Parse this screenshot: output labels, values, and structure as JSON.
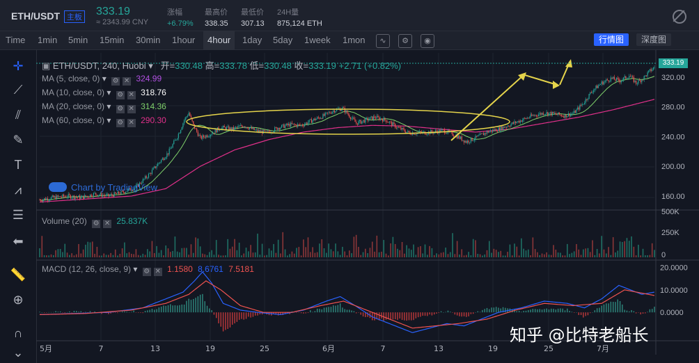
{
  "header": {
    "pair": "ETH/USDT",
    "market_tag": "主板",
    "price": "333.19",
    "price_cny": "≈ 2343.99 CNY",
    "stats": [
      {
        "label": "涨幅",
        "value": "+6.79%",
        "up": true
      },
      {
        "label": "最高价",
        "value": "338.35",
        "up": false
      },
      {
        "label": "最低价",
        "value": "307.13",
        "up": false
      },
      {
        "label": "24H量",
        "value": "875,124 ETH",
        "up": false
      }
    ]
  },
  "toolbar": {
    "intervals": [
      "Time",
      "1min",
      "5min",
      "15min",
      "30min",
      "1hour",
      "4hour",
      "1day",
      "5day",
      "1week",
      "1mon"
    ],
    "active_interval": "4hour",
    "views": [
      "行情图",
      "深度图"
    ],
    "active_view": "行情图"
  },
  "ohlc": {
    "symbol_line": "ETH/USDT, 240, Huobi",
    "open_label": "开=",
    "open": "330.48",
    "high_label": "高=",
    "high": "333.78",
    "low_label": "低=",
    "low": "330.48",
    "close_label": "收=",
    "close": "333.19",
    "change": "+2.71 (+0.82%)"
  },
  "indicators": [
    {
      "label": "MA (5, close, 0)",
      "value": "324.99",
      "color": "#b04fe0"
    },
    {
      "label": "MA (10, close, 0)",
      "value": "318.76",
      "color": "#ffffff"
    },
    {
      "label": "MA (20, close, 0)",
      "value": "314.36",
      "color": "#7fd16b"
    },
    {
      "label": "MA (60, close, 0)",
      "value": "290.30",
      "color": "#e0308a"
    }
  ],
  "volume_legend": {
    "label": "Volume (20)",
    "value": "25.837K"
  },
  "macd_legend": {
    "label": "MACD (12, 26, close, 9)",
    "hist": "1.1580",
    "macd": "8.6761",
    "signal": "7.5181"
  },
  "watermark": "Chart by TradingView",
  "zhihu_watermark": "知乎 @比特老船长",
  "last_price_tag": "333.19",
  "chart_data": {
    "type": "candlestick",
    "x_ticks": [
      "5月",
      "7",
      "13",
      "19",
      "25",
      "6月",
      "7",
      "13",
      "19",
      "25",
      "7月"
    ],
    "y_ticks": [
      "320.00",
      "280.00",
      "240.00",
      "200.00",
      "160.00"
    ],
    "ylim": [
      145,
      345
    ],
    "volume_ticks": [
      "500K",
      "250K",
      "0"
    ],
    "volume_ylim": [
      0,
      520000
    ],
    "macd_ticks": [
      "20.0000",
      "10.0000",
      "0.0000"
    ],
    "macd_ylim": [
      -12,
      22
    ],
    "close_path": [
      [
        0,
        155
      ],
      [
        12,
        158
      ],
      [
        24,
        160
      ],
      [
        36,
        158
      ],
      [
        48,
        163
      ],
      [
        60,
        160
      ],
      [
        72,
        165
      ],
      [
        84,
        172
      ],
      [
        96,
        190
      ],
      [
        104,
        205
      ],
      [
        112,
        218
      ],
      [
        120,
        240
      ],
      [
        126,
        262
      ],
      [
        130,
        272
      ],
      [
        134,
        255
      ],
      [
        140,
        238
      ],
      [
        148,
        243
      ],
      [
        158,
        252
      ],
      [
        168,
        250
      ],
      [
        178,
        255
      ],
      [
        188,
        248
      ],
      [
        198,
        245
      ],
      [
        208,
        252
      ],
      [
        218,
        256
      ],
      [
        228,
        255
      ],
      [
        238,
        262
      ],
      [
        248,
        268
      ],
      [
        256,
        275
      ],
      [
        264,
        278
      ],
      [
        270,
        268
      ],
      [
        276,
        258
      ],
      [
        284,
        262
      ],
      [
        292,
        266
      ],
      [
        302,
        262
      ],
      [
        312,
        252
      ],
      [
        322,
        245
      ],
      [
        332,
        245
      ],
      [
        342,
        246
      ],
      [
        352,
        248
      ],
      [
        362,
        242
      ],
      [
        372,
        233
      ],
      [
        380,
        238
      ],
      [
        390,
        246
      ],
      [
        400,
        250
      ],
      [
        410,
        256
      ],
      [
        420,
        262
      ],
      [
        430,
        268
      ],
      [
        440,
        272
      ],
      [
        450,
        270
      ],
      [
        458,
        268
      ],
      [
        466,
        272
      ],
      [
        474,
        285
      ],
      [
        482,
        302
      ],
      [
        490,
        312
      ],
      [
        498,
        318
      ],
      [
        506,
        315
      ],
      [
        514,
        322
      ],
      [
        520,
        312
      ],
      [
        526,
        318
      ],
      [
        532,
        328
      ],
      [
        536,
        333
      ]
    ],
    "ma60_path": [
      [
        0,
        152
      ],
      [
        40,
        156
      ],
      [
        80,
        160
      ],
      [
        110,
        170
      ],
      [
        140,
        200
      ],
      [
        170,
        222
      ],
      [
        200,
        236
      ],
      [
        230,
        246
      ],
      [
        260,
        252
      ],
      [
        290,
        255
      ],
      [
        320,
        254
      ],
      [
        350,
        250
      ],
      [
        380,
        246
      ],
      [
        410,
        250
      ],
      [
        440,
        258
      ],
      [
        470,
        266
      ],
      [
        500,
        276
      ],
      [
        536,
        290
      ]
    ],
    "macd_path": [
      [
        0,
        -1
      ],
      [
        30,
        -0.5
      ],
      [
        60,
        0
      ],
      [
        90,
        2
      ],
      [
        110,
        6
      ],
      [
        125,
        9
      ],
      [
        135,
        14
      ],
      [
        142,
        18
      ],
      [
        150,
        13
      ],
      [
        160,
        4
      ],
      [
        175,
        1
      ],
      [
        190,
        0
      ],
      [
        210,
        -1
      ],
      [
        230,
        1
      ],
      [
        250,
        5
      ],
      [
        262,
        7
      ],
      [
        275,
        3
      ],
      [
        290,
        -2
      ],
      [
        310,
        -6
      ],
      [
        325,
        -9
      ],
      [
        340,
        -7
      ],
      [
        355,
        -5
      ],
      [
        370,
        -6
      ],
      [
        385,
        -3
      ],
      [
        400,
        0
      ],
      [
        420,
        2
      ],
      [
        440,
        5
      ],
      [
        460,
        4
      ],
      [
        475,
        2
      ],
      [
        490,
        6
      ],
      [
        505,
        12
      ],
      [
        515,
        10
      ],
      [
        525,
        8
      ],
      [
        536,
        9
      ]
    ],
    "signal_path": [
      [
        0,
        -1
      ],
      [
        40,
        -0.5
      ],
      [
        80,
        1
      ],
      [
        110,
        4
      ],
      [
        130,
        8
      ],
      [
        145,
        14
      ],
      [
        158,
        10
      ],
      [
        175,
        3
      ],
      [
        195,
        0
      ],
      [
        220,
        0
      ],
      [
        245,
        3
      ],
      [
        265,
        5
      ],
      [
        285,
        1
      ],
      [
        305,
        -3
      ],
      [
        325,
        -7
      ],
      [
        345,
        -6
      ],
      [
        365,
        -5
      ],
      [
        390,
        -3
      ],
      [
        415,
        1
      ],
      [
        440,
        4
      ],
      [
        465,
        3
      ],
      [
        490,
        4
      ],
      [
        510,
        10
      ],
      [
        536,
        7.5
      ]
    ]
  }
}
